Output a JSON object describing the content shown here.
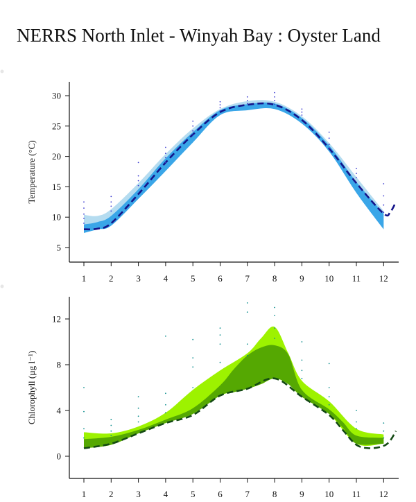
{
  "title": "NERRS North Inlet - Winyah Bay : Oyster Land",
  "chart_data": [
    {
      "type": "area",
      "ylabel": "Temperature (°C)",
      "xlim": [
        0.5,
        12.5
      ],
      "ylim": [
        3,
        32
      ],
      "x_ticks": [
        1,
        2,
        3,
        4,
        5,
        6,
        7,
        8,
        9,
        10,
        11,
        12
      ],
      "y_ticks": [
        5,
        10,
        15,
        20,
        25,
        30
      ],
      "colors": {
        "outer_band": "#b5dcf0",
        "inner_band": "#3aa6e8",
        "line": "#14148a",
        "points": "#3b3bd0"
      },
      "outer_band": {
        "x": [
          1,
          1.5,
          2,
          3,
          4,
          5,
          6,
          7,
          8,
          9,
          10,
          11,
          12
        ],
        "low": [
          7.6,
          8.1,
          9.0,
          13.5,
          18.2,
          22.8,
          27.0,
          27.8,
          27.9,
          25.6,
          21.0,
          14.4,
          8.2
        ],
        "high": [
          10.4,
          10.2,
          11.3,
          15.6,
          20.4,
          24.6,
          27.8,
          29.1,
          29.0,
          26.6,
          22.2,
          16.6,
          11.0
        ]
      },
      "inner_band": {
        "x": [
          1,
          1.5,
          2,
          3,
          4,
          5,
          6,
          7,
          8,
          9,
          10,
          11,
          12
        ],
        "low": [
          7.4,
          8.0,
          8.6,
          13.0,
          17.6,
          22.3,
          26.8,
          27.6,
          27.8,
          25.4,
          20.8,
          14.0,
          8.0
        ],
        "high": [
          8.8,
          9.2,
          10.2,
          14.6,
          19.7,
          24.0,
          27.6,
          28.6,
          28.7,
          26.3,
          21.8,
          15.8,
          10.6
        ]
      },
      "mean_line": {
        "x": [
          1,
          1.5,
          2,
          3,
          4,
          5,
          6,
          7,
          8,
          9,
          10,
          11,
          12,
          12.25,
          12.45
        ],
        "y": [
          8.0,
          8.1,
          9.0,
          13.8,
          19.0,
          23.6,
          27.3,
          28.5,
          28.5,
          26.0,
          21.3,
          15.6,
          10.6,
          10.9,
          12.5
        ]
      },
      "points": {
        "x": [
          1,
          1,
          1,
          1,
          1,
          2,
          2,
          2,
          2,
          3,
          3,
          3,
          3,
          4,
          4,
          4,
          4,
          5,
          5,
          5,
          5,
          6,
          6,
          6,
          6,
          7,
          7,
          7,
          8,
          8,
          8,
          8,
          9,
          9,
          9,
          10,
          10,
          10,
          10,
          11,
          11,
          11,
          12,
          12,
          12,
          12
        ],
        "y": [
          12.5,
          11.5,
          10.5,
          9.8,
          9.0,
          13.4,
          12.5,
          11.8,
          11.0,
          19.0,
          16.8,
          16.0,
          15.2,
          21.5,
          20.5,
          19.8,
          19.0,
          25.8,
          25.0,
          24.2,
          23.5,
          29.0,
          28.5,
          28.0,
          27.5,
          29.8,
          29.2,
          28.7,
          30.5,
          29.8,
          29.2,
          28.6,
          27.8,
          27.3,
          26.8,
          24.0,
          23.0,
          22.0,
          21.3,
          18.0,
          17.2,
          16.5,
          15.5,
          13.5,
          12.0,
          10.8
        ]
      }
    },
    {
      "type": "area",
      "ylabel": "Chlorophyll (µg l⁻¹)",
      "xlim": [
        0.5,
        12.5
      ],
      "ylim": [
        -2,
        14
      ],
      "x_ticks": [
        1,
        2,
        3,
        4,
        5,
        6,
        7,
        8,
        9,
        10,
        11,
        12
      ],
      "y_ticks": [
        0,
        4,
        8,
        12
      ],
      "colors": {
        "outer_band": "#9df200",
        "inner_band": "#55a802",
        "line": "#144a14",
        "points": "#0f8f8f"
      },
      "outer_band": {
        "x": [
          1,
          2,
          3,
          4,
          5,
          6,
          7,
          7.5,
          8,
          8.5,
          9,
          10,
          11,
          12
        ],
        "low": [
          0.7,
          1.0,
          2.0,
          2.9,
          3.7,
          5.3,
          5.9,
          6.3,
          6.8,
          6.3,
          5.2,
          3.7,
          1.1,
          1.1
        ],
        "high": [
          2.1,
          2.0,
          2.6,
          3.8,
          5.8,
          7.5,
          9.0,
          10.3,
          11.3,
          9.0,
          6.6,
          4.8,
          2.4,
          1.9
        ]
      },
      "inner_band": {
        "x": [
          1,
          2,
          3,
          4,
          5,
          6,
          6.5,
          7,
          7.5,
          8,
          8.5,
          9,
          10,
          10.5,
          11,
          12
        ],
        "low": [
          0.7,
          1.0,
          2.0,
          2.9,
          3.7,
          5.3,
          5.6,
          5.9,
          6.3,
          6.8,
          6.3,
          5.2,
          3.7,
          2.5,
          1.1,
          1.1
        ],
        "high": [
          1.5,
          1.7,
          2.3,
          3.2,
          4.2,
          6.2,
          7.6,
          8.8,
          9.5,
          9.7,
          8.9,
          5.8,
          4.1,
          3.0,
          1.8,
          1.6
        ]
      },
      "mean_line": {
        "x": [
          1,
          2,
          3,
          4,
          5,
          6,
          7,
          8,
          9,
          10,
          10.5,
          11,
          11.5,
          12,
          12.25,
          12.45
        ],
        "y": [
          0.7,
          1.1,
          2.0,
          2.9,
          3.6,
          5.3,
          5.9,
          6.8,
          5.2,
          3.6,
          2.3,
          1.0,
          0.7,
          0.9,
          1.4,
          2.2
        ]
      },
      "points": {
        "x": [
          1,
          1,
          1,
          1,
          2,
          2,
          2,
          2,
          3,
          3,
          3,
          3,
          4,
          4,
          4,
          4,
          5,
          5,
          5,
          5,
          6,
          6,
          6,
          6,
          7,
          7,
          7,
          7,
          8,
          8,
          8,
          8,
          9,
          9,
          9,
          9,
          10,
          10,
          10,
          10,
          11,
          11,
          11,
          12,
          12,
          12
        ],
        "y": [
          6.0,
          3.9,
          2.4,
          1.6,
          3.2,
          2.7,
          2.2,
          1.8,
          5.2,
          4.2,
          3.5,
          3.0,
          10.5,
          5.5,
          4.5,
          3.8,
          10.2,
          8.6,
          7.8,
          6.0,
          11.2,
          10.6,
          9.8,
          8.2,
          13.4,
          12.6,
          9.8,
          8.8,
          13.0,
          12.3,
          11.2,
          10.3,
          10.0,
          8.4,
          7.5,
          6.8,
          8.1,
          6.0,
          5.2,
          4.5,
          4.0,
          3.0,
          2.4,
          2.9,
          2.2,
          1.6
        ]
      }
    }
  ]
}
